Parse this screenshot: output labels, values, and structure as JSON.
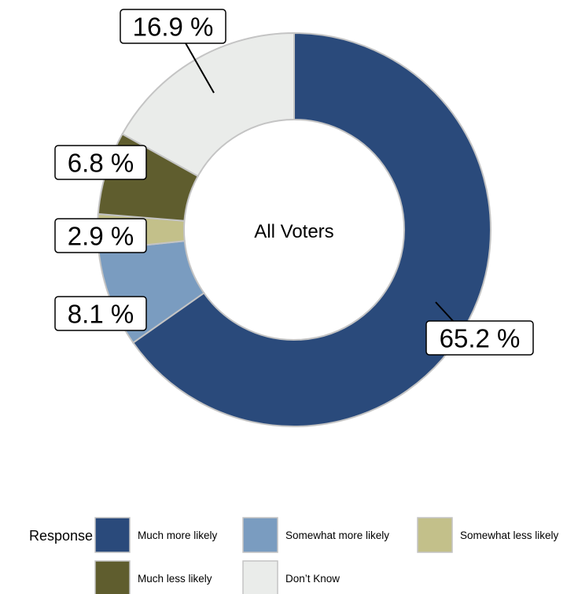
{
  "chart_data": {
    "type": "pie",
    "variant": "donut",
    "center_label": "All Voters",
    "legend_title": "Response",
    "legend_position": "bottom",
    "slices": [
      {
        "name": "Much more likely",
        "value": 65.2,
        "label": "65.2 %",
        "color": "#2a4a7b"
      },
      {
        "name": "Somewhat more likely",
        "value": 8.1,
        "label": "8.1 %",
        "color": "#7a9cc0"
      },
      {
        "name": "Somewhat less likely",
        "value": 2.9,
        "label": "2.9 %",
        "color": "#c3c08a"
      },
      {
        "name": "Much less likely",
        "value": 6.8,
        "label": "6.8 %",
        "color": "#5f5d2e"
      },
      {
        "name": "Don’t Know",
        "value": 16.9,
        "label": "16.9 %",
        "color": "#eaecea"
      }
    ]
  }
}
